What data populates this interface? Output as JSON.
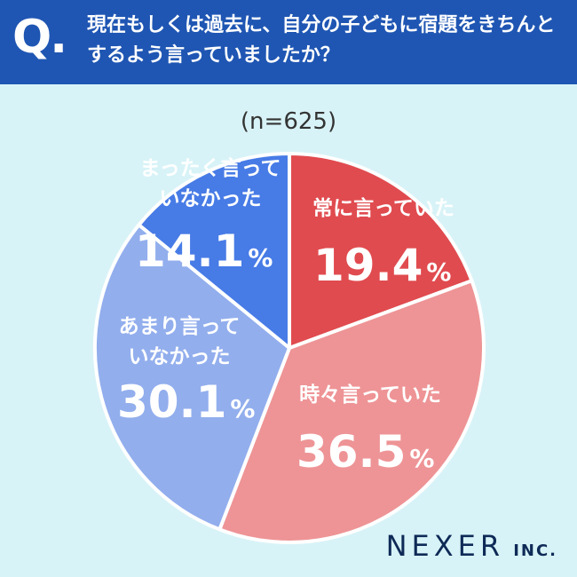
{
  "question": {
    "mark": "Q.",
    "text": "現在もしくは過去に、自分の子どもに宿題をきちんとするよう言っていましたか？"
  },
  "sample_size": "(n=625)",
  "logo": {
    "main": "NEXER",
    "sub": "INC."
  },
  "chart_data": {
    "type": "pie",
    "title": "",
    "start_angle_deg": 0,
    "direction": "clockwise",
    "slices": [
      {
        "label_lines": [
          "常に言っていた"
        ],
        "value": 19.4,
        "display": "19.4",
        "unit": "%",
        "color": "#e04b4f",
        "label_color": "#ffffff"
      },
      {
        "label_lines": [
          "時々言っていた"
        ],
        "value": 36.5,
        "display": "36.5",
        "unit": "%",
        "color": "#ee9496",
        "label_color": "#ffffff"
      },
      {
        "label_lines": [
          "あまり言って",
          "いなかった"
        ],
        "value": 30.1,
        "display": "30.1",
        "unit": "%",
        "color": "#92aeed",
        "label_color": "#ffffff"
      },
      {
        "label_lines": [
          "まったく言って",
          "いなかった"
        ],
        "value": 14.1,
        "display": "14.1",
        "unit": "%",
        "color": "#477be6",
        "label_color": "#ffffff"
      }
    ]
  }
}
